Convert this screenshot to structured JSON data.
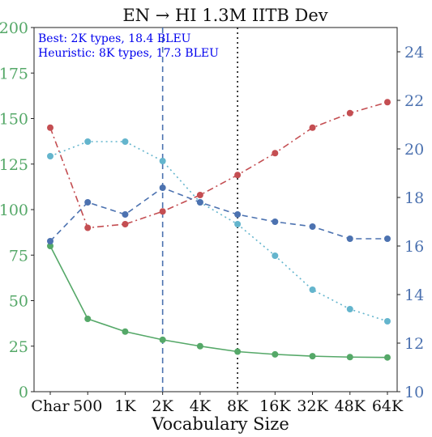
{
  "chart_data": {
    "type": "line",
    "title": "EN → HI 1.3M IITB Dev",
    "xlabel": "Vocabulary Size",
    "categories": [
      "Char",
      "500",
      "1K",
      "2K",
      "4K",
      "8K",
      "16K",
      "32K",
      "48K",
      "64K"
    ],
    "left_axis": {
      "ylim": [
        0,
        200
      ],
      "ticks": [
        "0",
        "25",
        "50",
        "75",
        "100",
        "125",
        "150",
        "175",
        "200"
      ],
      "color": "#55a868"
    },
    "right_axis": {
      "ylim": [
        10,
        25
      ],
      "ticks": [
        "10",
        "12",
        "14",
        "16",
        "18",
        "20",
        "22",
        "24"
      ],
      "color": "#4c72b0"
    },
    "series": [
      {
        "axis": "left",
        "color": "#55a868",
        "style": "solid",
        "values": [
          80,
          40,
          33,
          28.5,
          25,
          22,
          20.5,
          19.5,
          19,
          18.8
        ]
      },
      {
        "axis": "left",
        "color": "#c44e52",
        "style": "dashdot",
        "values": [
          145,
          90,
          92,
          99,
          108,
          119,
          131,
          145,
          153,
          159
        ]
      },
      {
        "axis": "right",
        "color": "#64b5cd",
        "style": "dotted",
        "values": [
          19.7,
          20.3,
          20.3,
          19.5,
          17.8,
          16.9,
          15.6,
          14.2,
          13.4,
          12.9
        ]
      },
      {
        "axis": "right",
        "color": "#4c72b0",
        "style": "dashed",
        "values": [
          16.2,
          17.8,
          17.3,
          18.4,
          17.8,
          17.3,
          17.0,
          16.8,
          16.3,
          16.3
        ]
      }
    ],
    "vlines": [
      {
        "category": "2K",
        "color": "#4c72b0",
        "style": "dashed"
      },
      {
        "category": "8K",
        "color": "#111111",
        "style": "dotted"
      }
    ],
    "annotations": [
      "Best: 2K types, 18.4 BLEU",
      "Heuristic: 8K types, 17.3 BLEU"
    ],
    "grid": false
  }
}
